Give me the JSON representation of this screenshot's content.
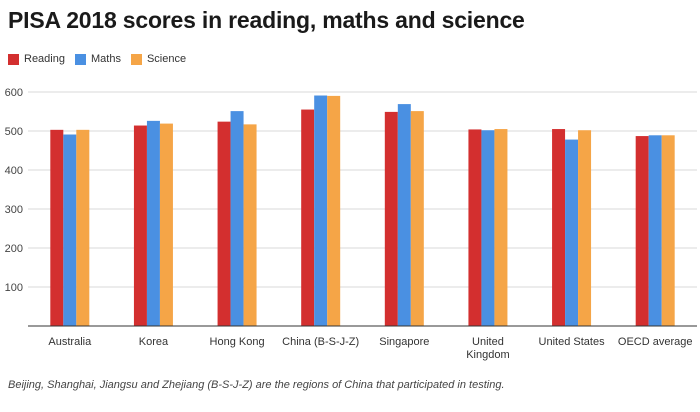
{
  "chart_data": {
    "type": "bar",
    "title": "PISA 2018 scores in reading, maths and science",
    "categories": [
      "Australia",
      "Korea",
      "Hong Kong",
      "China (B-S-J-Z)",
      "Singapore",
      "United Kingdom",
      "United States",
      "OECD average"
    ],
    "category_lines": [
      [
        "Australia"
      ],
      [
        "Korea"
      ],
      [
        "Hong Kong"
      ],
      [
        "China (B-S-J-Z)"
      ],
      [
        "Singapore"
      ],
      [
        "United",
        "Kingdom"
      ],
      [
        "United States"
      ],
      [
        "OECD average"
      ]
    ],
    "series": [
      {
        "name": "Reading",
        "color": "#d32f2f",
        "values": [
          503,
          514,
          524,
          555,
          549,
          504,
          505,
          487
        ]
      },
      {
        "name": "Maths",
        "color": "#4a90e2",
        "values": [
          491,
          526,
          551,
          591,
          569,
          502,
          478,
          489
        ]
      },
      {
        "name": "Science",
        "color": "#f5a547",
        "values": [
          503,
          519,
          517,
          590,
          551,
          505,
          502,
          489
        ]
      }
    ],
    "ylim": [
      0,
      600
    ],
    "yticks": [
      100,
      200,
      300,
      400,
      500,
      600
    ],
    "grid": true,
    "legend_position": "top-left",
    "xlabel": "",
    "ylabel": "",
    "footnote": "Beijing, Shanghai, Jiangsu and Zhejiang (B-S-J-Z) are the regions of China that participated in testing."
  }
}
